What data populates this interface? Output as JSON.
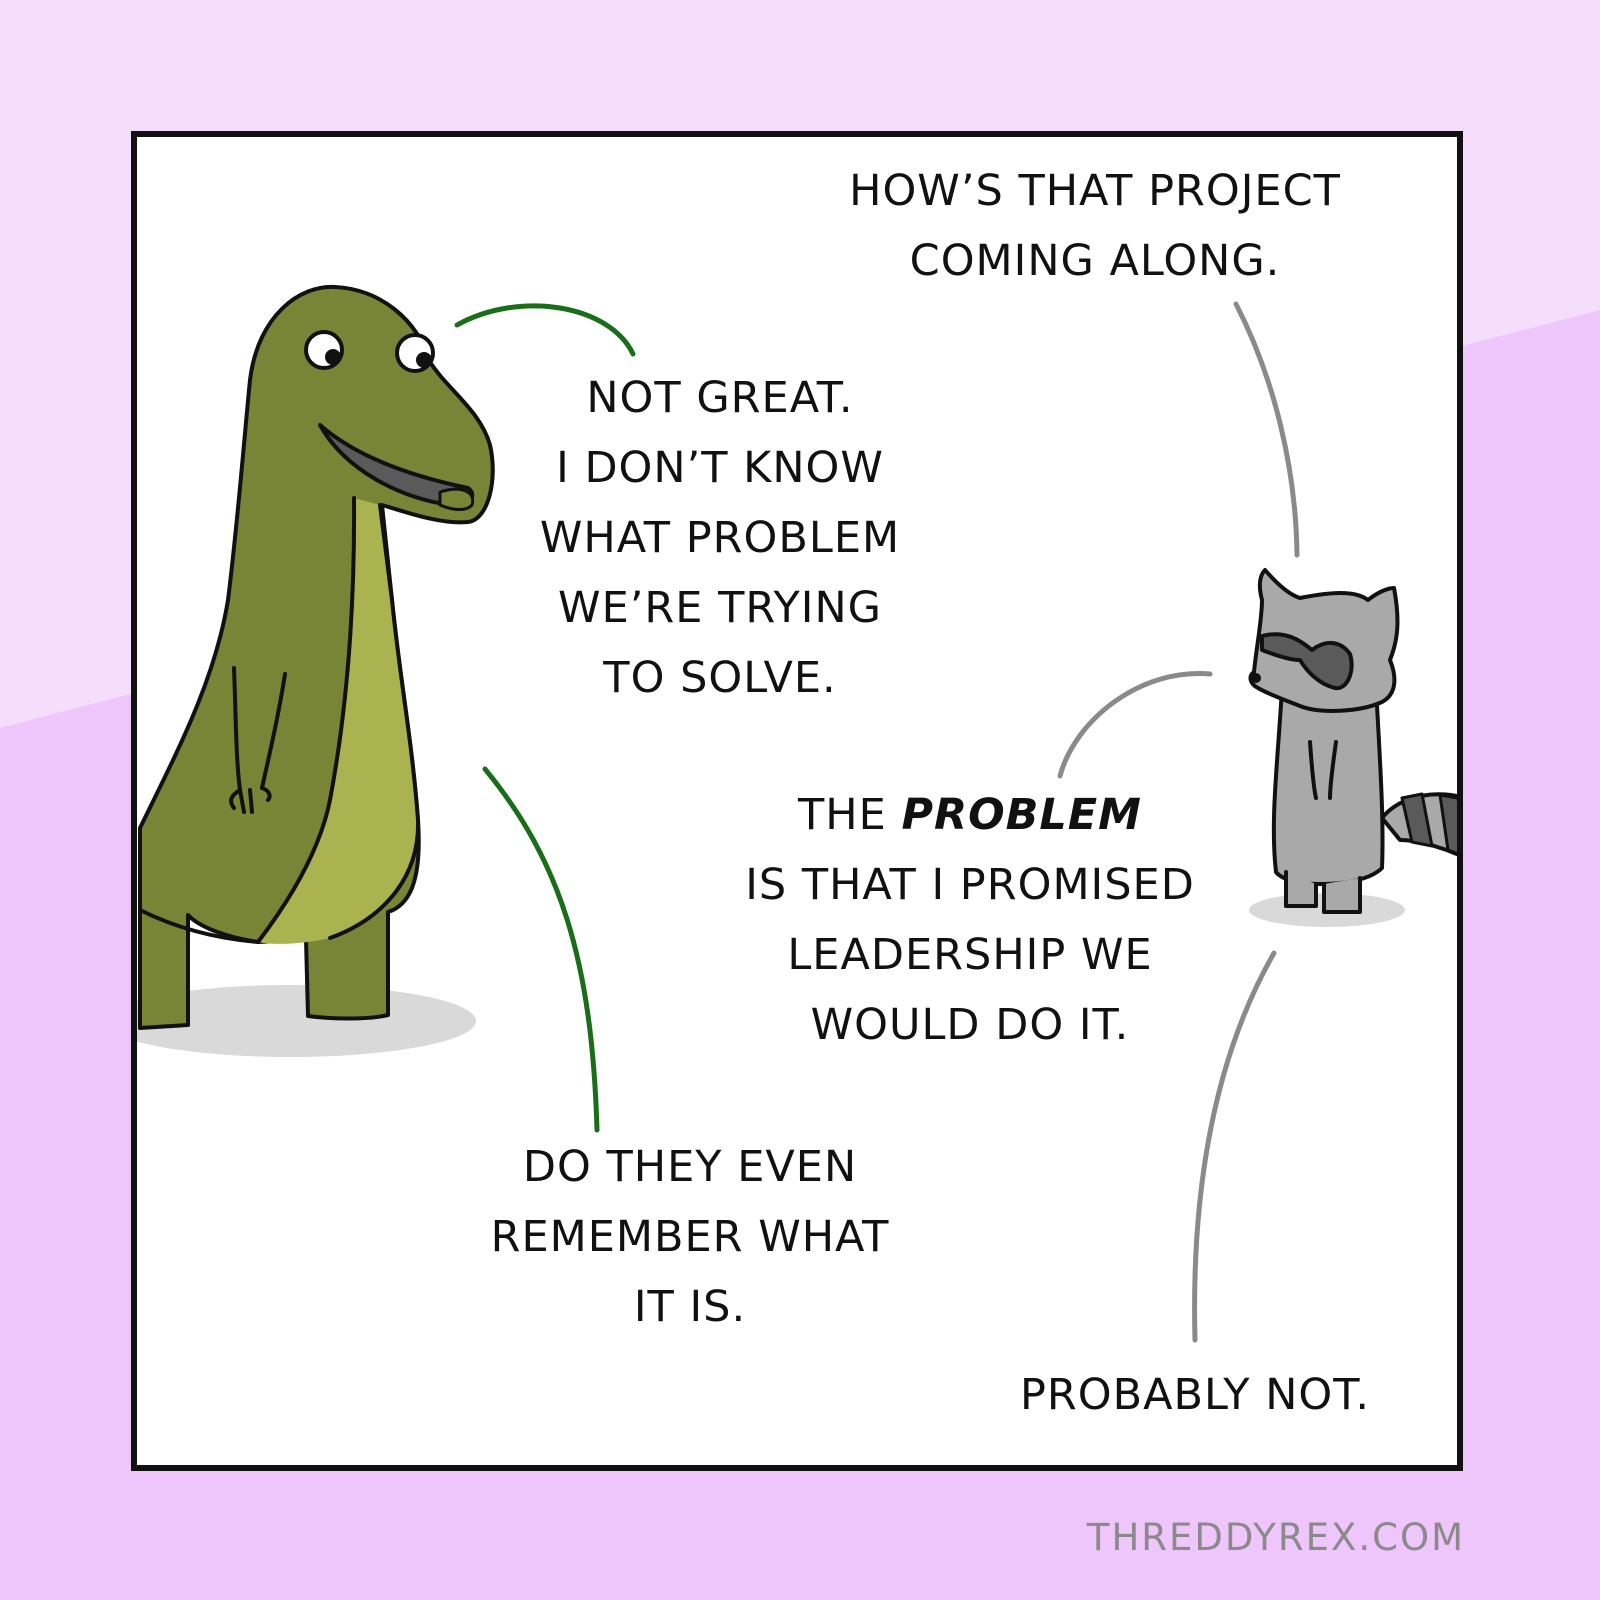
{
  "comic": {
    "dialogue": {
      "raccoon_question": [
        "HOW’S THAT PROJECT",
        "COMING ALONG."
      ],
      "dino_reply": [
        "NOT GREAT.",
        "I DON’T KNOW",
        "WHAT PROBLEM",
        "WE’RE TRYING",
        "TO SOLVE."
      ],
      "raccoon_problem": {
        "line1_pre": "THE ",
        "line1_emphasis": "PROBLEM",
        "rest": [
          "IS THAT I PROMISED",
          "LEADERSHIP WE",
          "WOULD DO IT."
        ]
      },
      "dino_followup": [
        "DO THEY EVEN",
        "REMEMBER WHAT",
        "IT IS."
      ],
      "raccoon_final": [
        "PROBABLY NOT."
      ]
    },
    "footer_url": "THREDDYREX.COM",
    "colors": {
      "background_top": "#f4defc",
      "background_bottom": "#ecbdfb",
      "dino_body": "#788537",
      "dino_belly": "#abb350",
      "raccoon_body": "#a9a9a9",
      "raccoon_mask": "#5a5a5a",
      "dino_speech_line": "#1a6e1a",
      "raccoon_speech_line": "#8a8a8a"
    }
  }
}
